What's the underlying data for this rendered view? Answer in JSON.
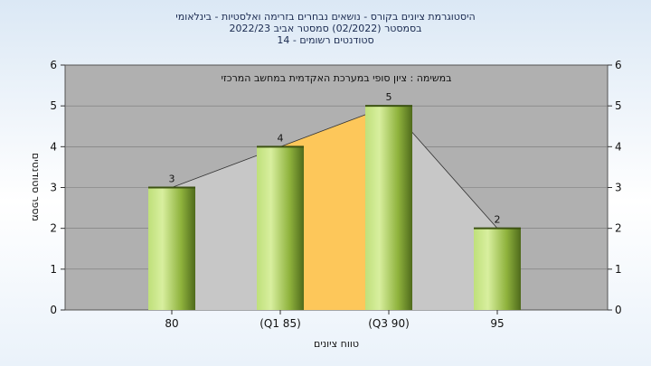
{
  "chart_data": {
    "type": "bar",
    "title_lines": [
      "היסטוגרמת ציונים בקורס - נושאים נבחרים בזרימה ואלסטיות - בינלאומי",
      "בסמסטר  (02/2022)  סמסטר אביב 2022/23",
      "סטודנטים רשומים - 14"
    ],
    "annotation": "במשימה : ציון סופי במערכת האקדמית במחשב המרכזי",
    "xlabel": "טווח ציונים",
    "ylabel": "מספר סטודנטים",
    "categories": [
      "80",
      "(Q1 85)",
      "(Q3 90)",
      "95"
    ],
    "values": [
      3,
      4,
      5,
      2
    ],
    "ylim": [
      0,
      6
    ],
    "yticks": [
      "0",
      "1",
      "2",
      "3",
      "4",
      "5",
      "6"
    ],
    "grid": true,
    "colors": {
      "plot_bg": "#b0b0b0",
      "bar_light": "#d8ef9f",
      "bar_mid": "#9cc449",
      "bar_dark": "#4f6a1c",
      "area_highlight": "#fdc75a",
      "area_shadow": "#c7c7c7",
      "title": "#1a2a50"
    }
  }
}
